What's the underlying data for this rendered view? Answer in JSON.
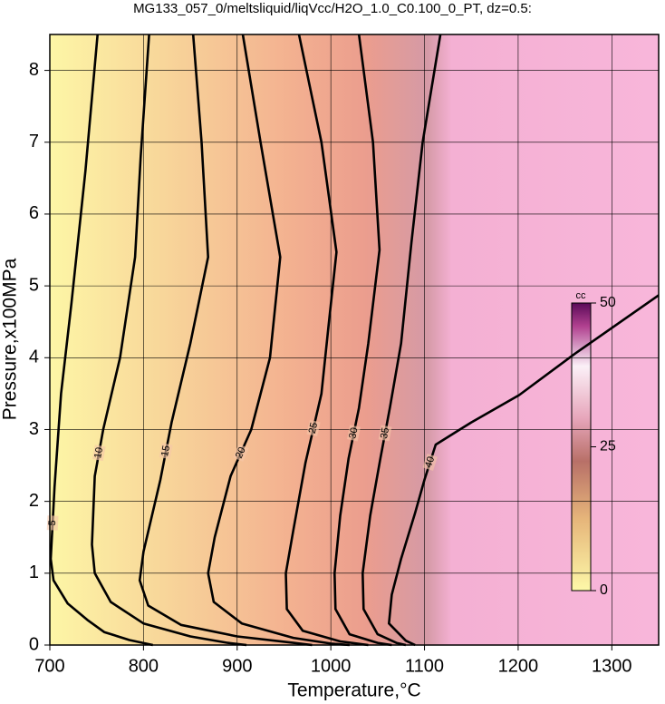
{
  "chart_data": {
    "type": "contour",
    "title": "MG133_057_0/meltsliquid/liqVcc/H2O_1.0_C0.100_0_PT, dz=0.5:",
    "x_label": "Temperature,°C",
    "y_label": "Pressure,x100MPa",
    "xlim": [
      700,
      1350
    ],
    "ylim": [
      0,
      8.5
    ],
    "xticks": [
      700,
      800,
      900,
      1000,
      1100,
      1200,
      1300
    ],
    "yticks": [
      0,
      1,
      2,
      3,
      4,
      5,
      6,
      7,
      8
    ],
    "grid": true,
    "contours": [
      {
        "level": 5,
        "x": [
          751,
          738,
          723,
          712,
          705,
          701,
          704,
          719,
          740,
          758,
          785,
          810
        ],
        "y": [
          8.5,
          6.6,
          4.75,
          3.5,
          2.2,
          1.2,
          0.9,
          0.58,
          0.35,
          0.18,
          0.07,
          0
        ]
      },
      {
        "level": 10,
        "x": [
          806,
          797,
          791,
          775,
          757,
          748,
          745,
          748,
          765,
          800,
          850,
          890,
          910
        ],
        "y": [
          8.5,
          6.8,
          5.4,
          4,
          3,
          2.35,
          1.4,
          1.0,
          0.6,
          0.3,
          0.12,
          0.03,
          0
        ]
      },
      {
        "level": 15,
        "x": [
          853,
          862,
          869,
          850,
          830,
          818,
          800,
          796,
          805,
          840,
          900,
          960,
          980
        ],
        "y": [
          8.5,
          7,
          5.4,
          4.2,
          3.1,
          2.3,
          1.3,
          0.9,
          0.55,
          0.28,
          0.12,
          0.03,
          0
        ]
      },
      {
        "level": 20,
        "x": [
          906,
          925,
          946,
          935,
          915,
          893,
          876,
          869,
          875,
          905,
          960,
          1000,
          1020
        ],
        "y": [
          8.5,
          7,
          5.4,
          4,
          3,
          2.35,
          1.5,
          1.0,
          0.6,
          0.3,
          0.1,
          0.02,
          0
        ]
      },
      {
        "level": 25,
        "x": [
          966,
          990,
          1006,
          998,
          990,
          973,
          960,
          952,
          953,
          970,
          1010,
          1040
        ],
        "y": [
          8.5,
          7,
          5.47,
          4.5,
          3.5,
          2.54,
          1.6,
          1.0,
          0.5,
          0.2,
          0.05,
          0
        ]
      },
      {
        "level": 30,
        "x": [
          1030,
          1045,
          1052,
          1040,
          1030,
          1019,
          1010,
          1004,
          1005,
          1020,
          1050,
          1065
        ],
        "y": [
          8.5,
          7,
          5.5,
          4.2,
          3.3,
          2.6,
          1.8,
          1.0,
          0.5,
          0.15,
          0.03,
          0
        ]
      },
      {
        "level": 35,
        "x": [
          1117,
          1098,
          1086,
          1075,
          1063,
          1053,
          1042,
          1034,
          1035,
          1050,
          1070,
          1080
        ],
        "y": [
          8.5,
          7,
          5.6,
          4.2,
          3.3,
          2.6,
          1.8,
          1.0,
          0.5,
          0.15,
          0.03,
          0
        ]
      },
      {
        "level": 40,
        "x": [
          1350,
          1260,
          1201,
          1150,
          1112,
          1100,
          1090,
          1075,
          1065,
          1062,
          1080,
          1090
        ],
        "y": [
          4.87,
          4.05,
          3.48,
          3.1,
          2.79,
          2.3,
          1.84,
          1.2,
          0.7,
          0.3,
          0.06,
          0
        ]
      }
    ],
    "colorbar": {
      "label": "cc",
      "lim": [
        0,
        50
      ],
      "ticks": [
        0,
        25,
        50
      ]
    }
  }
}
